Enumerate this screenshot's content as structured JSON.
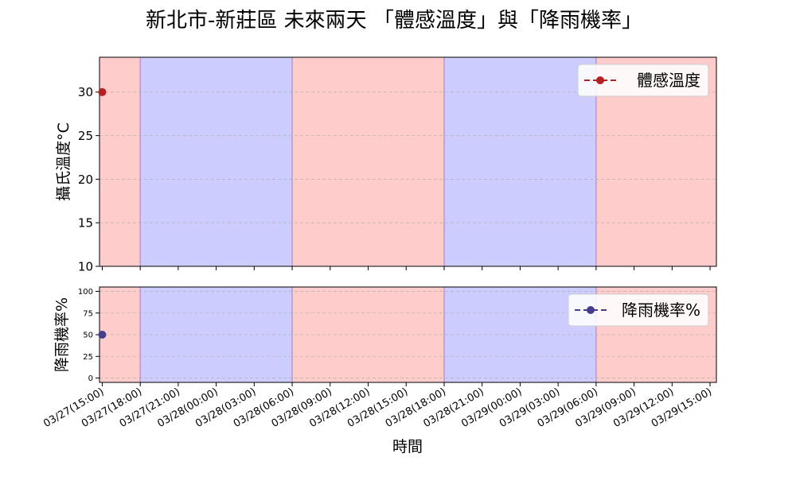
{
  "chart_data": {
    "type": "line",
    "title": "新北市-新莊區 未來兩天 「體感溫度」與「降雨機率」",
    "xlabel": "時間",
    "x_ticks": [
      "03/27(15:00)",
      "03/27(18:00)",
      "03/27(21:00)",
      "03/28(00:00)",
      "03/28(03:00)",
      "03/28(06:00)",
      "03/28(09:00)",
      "03/28(12:00)",
      "03/28(15:00)",
      "03/28(18:00)",
      "03/28(21:00)",
      "03/29(00:00)",
      "03/29(03:00)",
      "03/29(06:00)",
      "03/29(09:00)",
      "03/29(12:00)",
      "03/29(15:00)"
    ],
    "x_range": [
      "03/27(14:47)",
      "03/29(15:30)"
    ],
    "shading": [
      {
        "from": "03/27(14:47)",
        "to": "03/27(18:00)",
        "period": "day",
        "color": "#ffcccc"
      },
      {
        "from": "03/27(18:00)",
        "to": "03/28(06:00)",
        "period": "night",
        "color": "#ccccff"
      },
      {
        "from": "03/28(06:00)",
        "to": "03/28(18:00)",
        "period": "day",
        "color": "#ffcccc"
      },
      {
        "from": "03/28(18:00)",
        "to": "03/29(06:00)",
        "period": "night",
        "color": "#ccccff"
      },
      {
        "from": "03/29(06:00)",
        "to": "03/29(15:30)",
        "period": "day",
        "color": "#ffcccc"
      }
    ],
    "panels": [
      {
        "ylabel": "攝氏溫度°C",
        "ylim": [
          10,
          34
        ],
        "yticks": [
          10,
          15,
          20,
          25,
          30
        ],
        "grid": true,
        "legend_position": "top-right",
        "series": [
          {
            "name": "體感溫度",
            "color": "#b22222",
            "linestyle": "dashed",
            "marker": "circle",
            "points": [
              {
                "x": "03/27(15:00)",
                "y": 30
              }
            ]
          }
        ]
      },
      {
        "ylabel": "降雨機率%",
        "ylim": [
          -5,
          105
        ],
        "yticks": [
          0,
          25,
          50,
          75,
          100
        ],
        "grid": true,
        "legend_position": "top-right",
        "series": [
          {
            "name": "降雨機率%",
            "color": "#483d8b",
            "linestyle": "dashed",
            "marker": "circle",
            "points": [
              {
                "x": "03/27(15:00)",
                "y": 50
              }
            ]
          }
        ]
      }
    ]
  }
}
